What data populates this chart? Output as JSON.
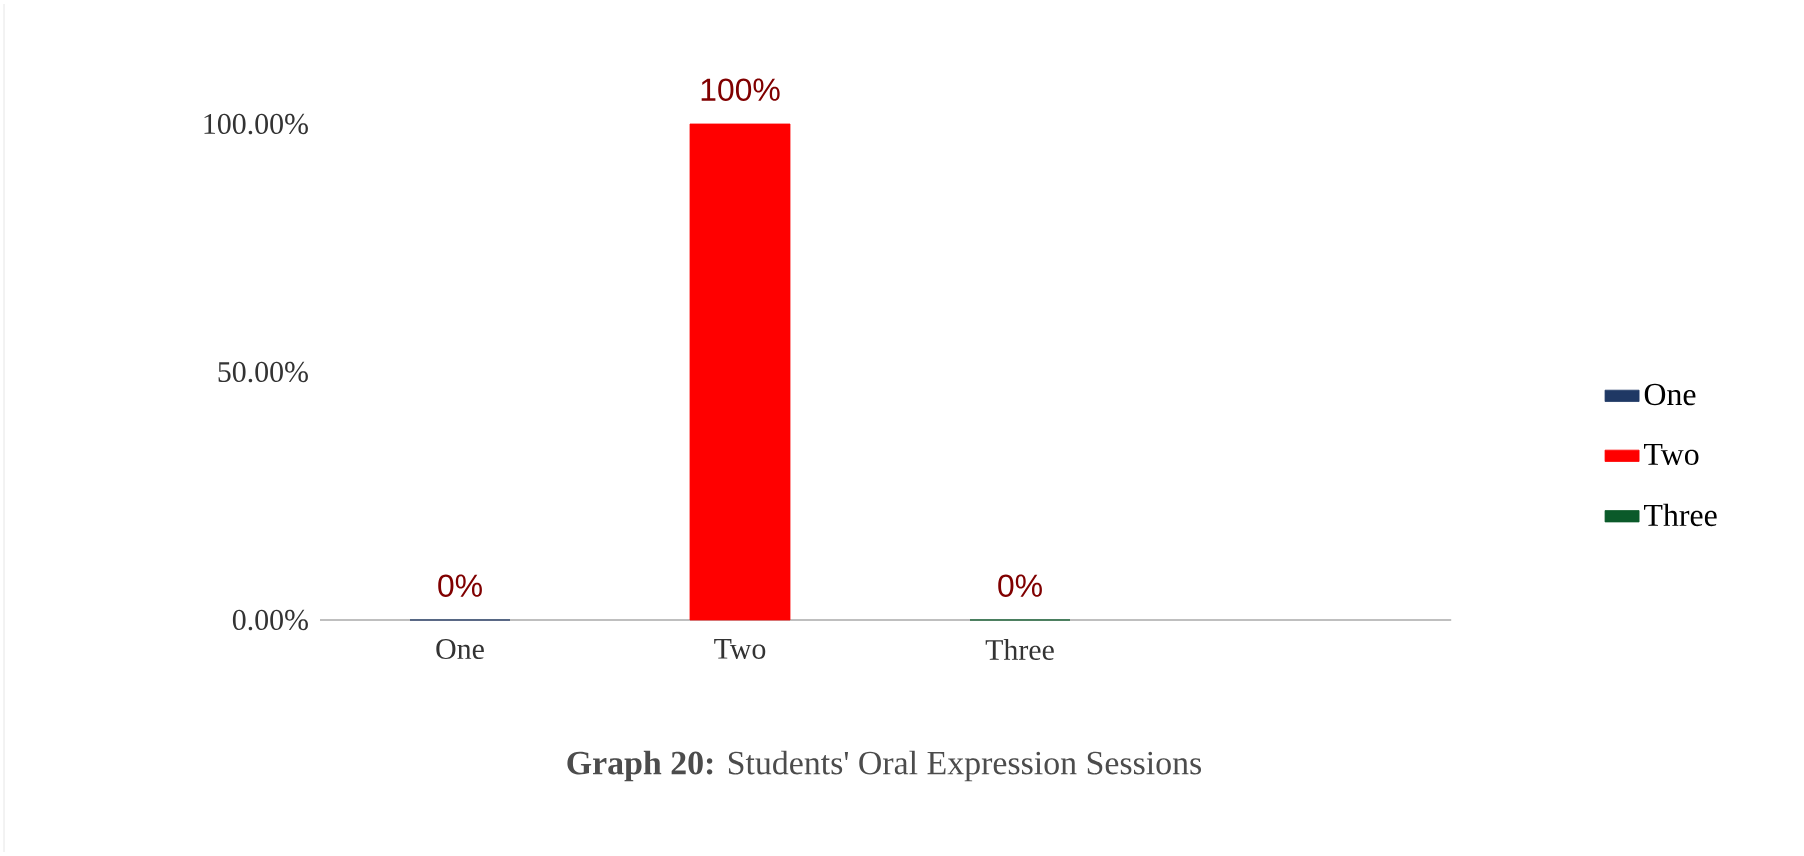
{
  "chart_data": {
    "type": "bar",
    "title": "**Graph 20:** Students' Oral Expression Sessions",
    "categories": [
      "One",
      "Two",
      "Three"
    ],
    "series": [
      {
        "name": "One",
        "color": "#1f3864",
        "values": [
          0,
          null,
          null
        ],
        "value_labels": [
          "0%",
          null,
          null
        ]
      },
      {
        "name": "Two",
        "color": "#ff0000",
        "values": [
          null,
          100,
          null
        ],
        "value_labels": [
          null,
          "100%",
          null
        ]
      },
      {
        "name": "Three",
        "color": "#0b5a2a",
        "values": [
          null,
          null,
          0
        ],
        "value_labels": [
          null,
          null,
          "0%"
        ]
      }
    ],
    "ylim": [
      0,
      100
    ],
    "yticks": [
      {
        "value": 0,
        "label": "0.00%"
      },
      {
        "value": 50,
        "label": "50.00%"
      },
      {
        "value": 100,
        "label": "100.00%"
      }
    ],
    "legend": "right",
    "grid": false
  }
}
